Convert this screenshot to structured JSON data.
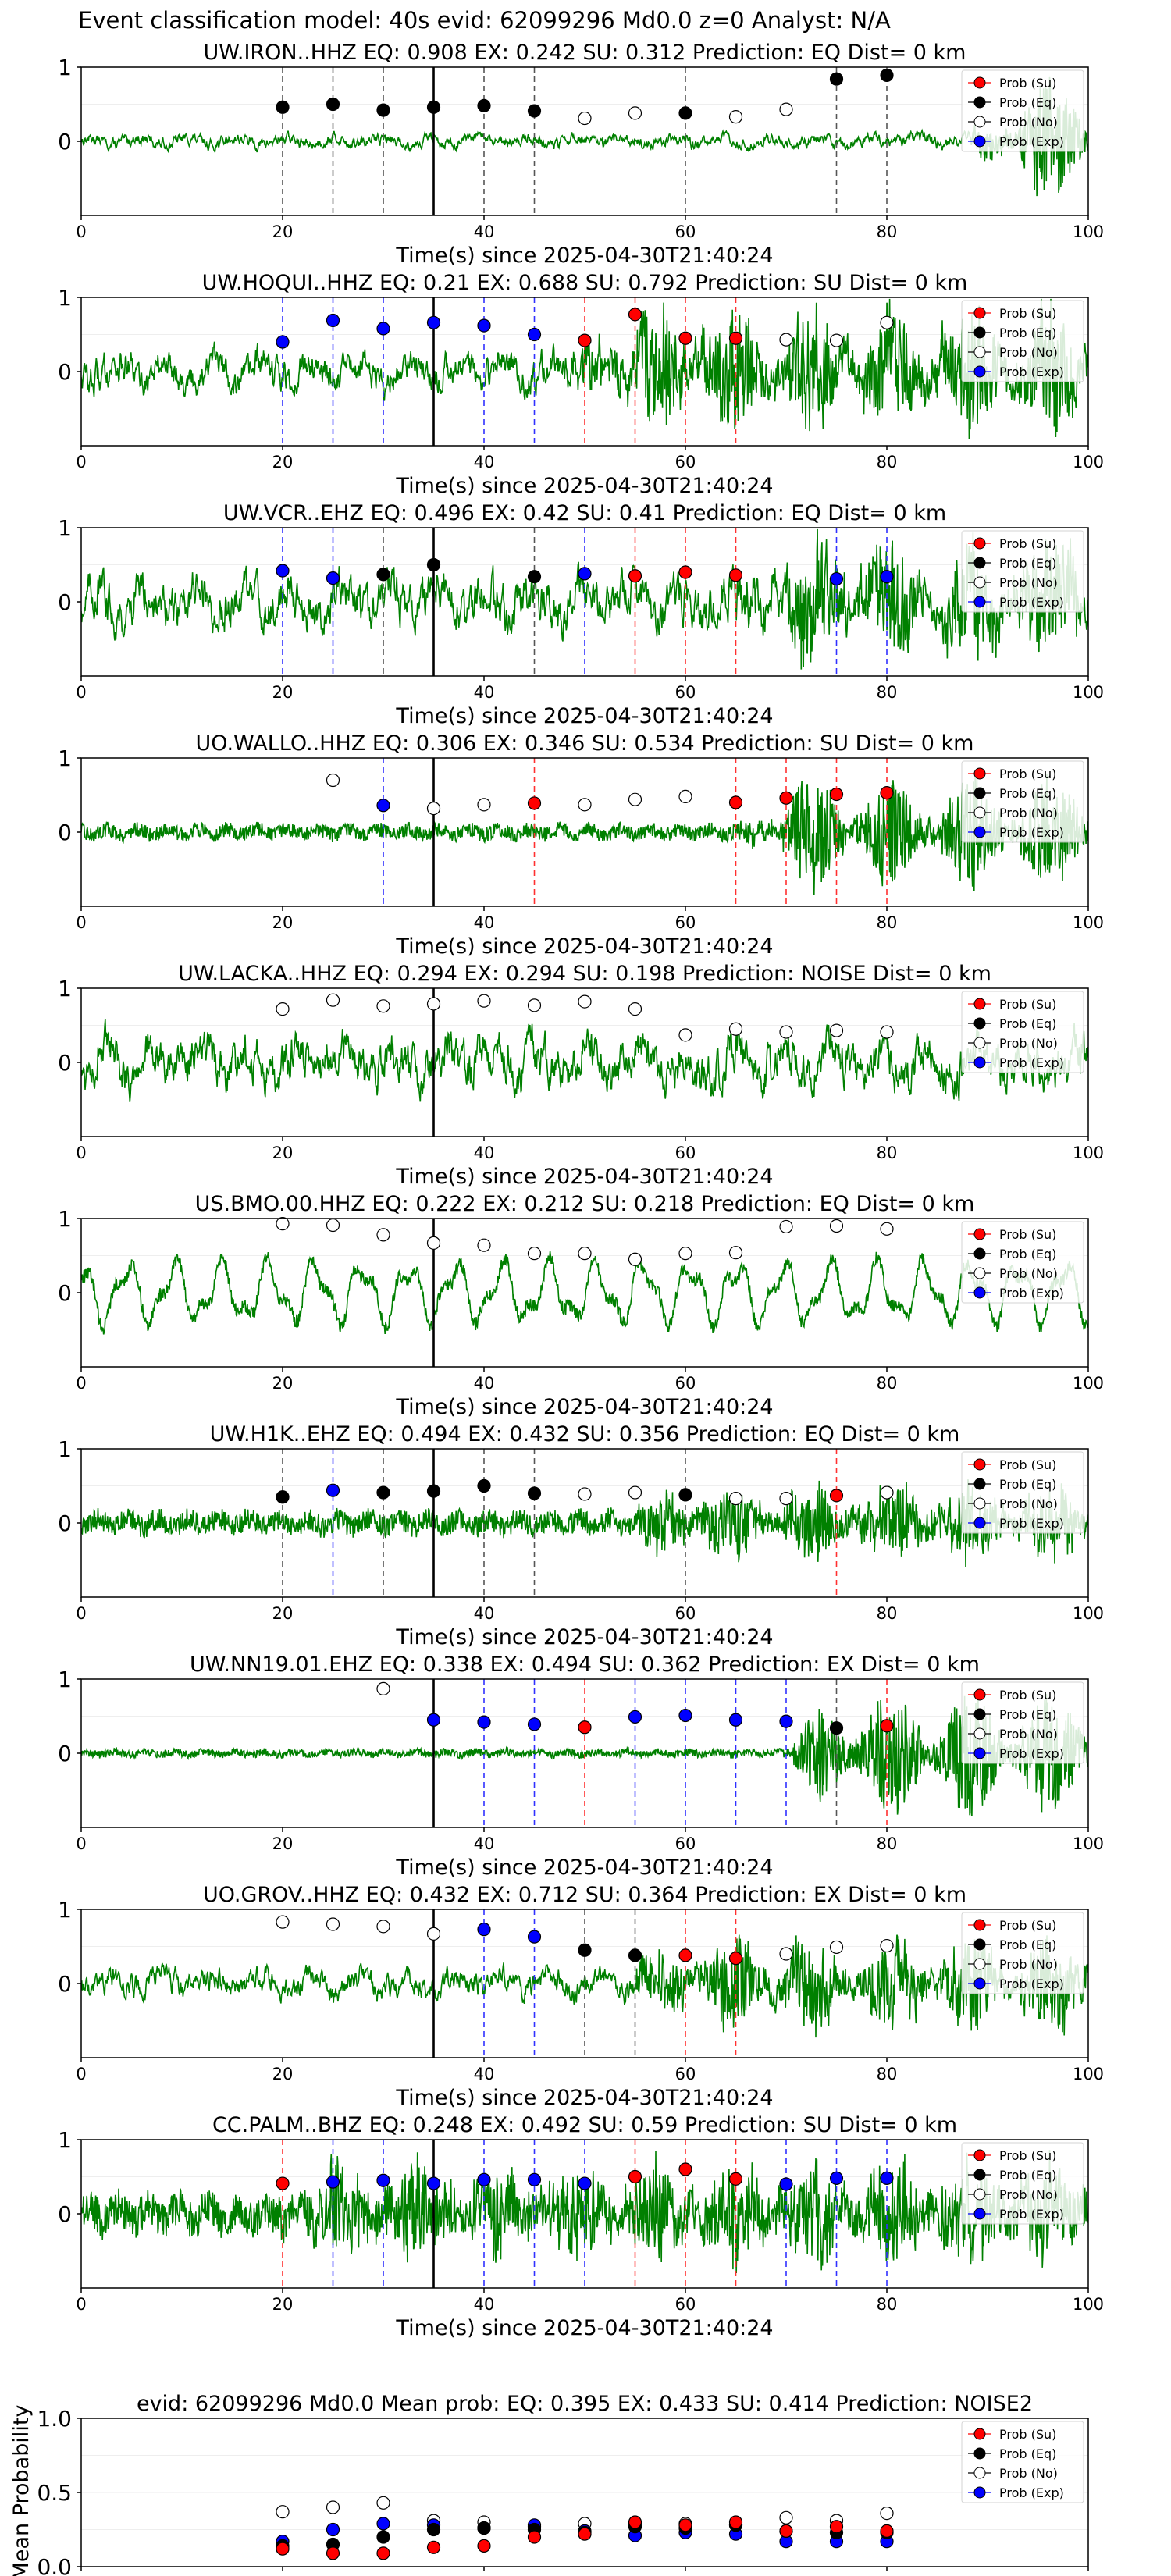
{
  "figure_title": "Event classification model: 40s evid: 62099296 Md0.0 z=0 Analyst: N/A",
  "colors": {
    "su": "#ff0000",
    "eq": "#000000",
    "no": "#ffffff",
    "exp": "#0000ff",
    "trace": "#008000",
    "eq_line": "#555555",
    "su_line": "#ff3030",
    "exp_line": "#3030ff"
  },
  "legend": [
    "Prob (Su)",
    "Prob (Eq)",
    "Prob (No)",
    "Prob (Exp)"
  ],
  "common": {
    "xlabel": "Time(s) since 2025-04-30T21:40:24",
    "xticks": [
      0,
      20,
      40,
      60,
      80,
      100
    ],
    "xlim": [
      0,
      100
    ],
    "ylim": [
      -1,
      1
    ],
    "yticks": [
      0,
      1
    ],
    "pick_time": 35
  },
  "chart_data": [
    {
      "type": "scatter",
      "title": "UW.IRON..HHZ   EQ: 0.908  EX: 0.242  SU: 0.312   Prediction: EQ    Dist= 0 km",
      "trace": {
        "amp": 0.12,
        "noise": "mid",
        "burst_start": 88,
        "burst_amp": 0.9
      },
      "points": [
        {
          "x": 20,
          "y": 0.46,
          "c": "eq",
          "line": true
        },
        {
          "x": 25,
          "y": 0.5,
          "c": "eq",
          "line": true
        },
        {
          "x": 30,
          "y": 0.42,
          "c": "eq",
          "line": true
        },
        {
          "x": 35,
          "y": 0.46,
          "c": "eq",
          "line": true
        },
        {
          "x": 40,
          "y": 0.48,
          "c": "eq",
          "line": true
        },
        {
          "x": 45,
          "y": 0.41,
          "c": "eq",
          "line": true
        },
        {
          "x": 50,
          "y": 0.31,
          "c": "no"
        },
        {
          "x": 55,
          "y": 0.38,
          "c": "no"
        },
        {
          "x": 60,
          "y": 0.38,
          "c": "eq",
          "line": true
        },
        {
          "x": 65,
          "y": 0.33,
          "c": "no"
        },
        {
          "x": 70,
          "y": 0.43,
          "c": "no"
        },
        {
          "x": 75,
          "y": 0.84,
          "c": "eq",
          "line": true
        },
        {
          "x": 80,
          "y": 0.89,
          "c": "eq",
          "line": true
        }
      ]
    },
    {
      "type": "scatter",
      "title": "UW.HOQUI..HHZ   EQ: 0.21  EX: 0.688  SU: 0.792   Prediction: SU    Dist= 0 km",
      "trace": {
        "amp": 0.35,
        "noise": "mid",
        "burst_start": 48,
        "burst_amp": 0.8
      },
      "points": [
        {
          "x": 20,
          "y": 0.4,
          "c": "exp",
          "line": true
        },
        {
          "x": 25,
          "y": 0.69,
          "c": "exp",
          "line": true
        },
        {
          "x": 30,
          "y": 0.58,
          "c": "exp",
          "line": true
        },
        {
          "x": 35,
          "y": 0.66,
          "c": "exp",
          "line": true
        },
        {
          "x": 40,
          "y": 0.62,
          "c": "exp",
          "line": true
        },
        {
          "x": 45,
          "y": 0.5,
          "c": "exp",
          "line": true
        },
        {
          "x": 50,
          "y": 0.42,
          "c": "su",
          "line": true
        },
        {
          "x": 55,
          "y": 0.77,
          "c": "su",
          "line": true
        },
        {
          "x": 60,
          "y": 0.45,
          "c": "su",
          "line": true
        },
        {
          "x": 65,
          "y": 0.45,
          "c": "su",
          "line": true
        },
        {
          "x": 70,
          "y": 0.43,
          "c": "no"
        },
        {
          "x": 75,
          "y": 0.42,
          "c": "no"
        },
        {
          "x": 80,
          "y": 0.66,
          "c": "no"
        }
      ]
    },
    {
      "type": "scatter",
      "title": "UW.VCR..EHZ   EQ: 0.496  EX: 0.42  SU: 0.41   Prediction: EQ    Dist= 0 km",
      "trace": {
        "amp": 0.45,
        "noise": "mid",
        "burst_start": 64,
        "burst_amp": 0.7
      },
      "points": [
        {
          "x": 20,
          "y": 0.42,
          "c": "exp",
          "line": true
        },
        {
          "x": 25,
          "y": 0.32,
          "c": "exp",
          "line": true
        },
        {
          "x": 30,
          "y": 0.37,
          "c": "eq",
          "line": true
        },
        {
          "x": 35,
          "y": 0.5,
          "c": "eq",
          "line": true
        },
        {
          "x": 45,
          "y": 0.34,
          "c": "eq",
          "line": true
        },
        {
          "x": 50,
          "y": 0.38,
          "c": "exp",
          "line": true
        },
        {
          "x": 55,
          "y": 0.35,
          "c": "su",
          "line": true
        },
        {
          "x": 60,
          "y": 0.4,
          "c": "su",
          "line": true
        },
        {
          "x": 65,
          "y": 0.36,
          "c": "su",
          "line": true
        },
        {
          "x": 75,
          "y": 0.31,
          "c": "exp",
          "line": true
        },
        {
          "x": 80,
          "y": 0.34,
          "c": "exp",
          "line": true
        }
      ]
    },
    {
      "type": "scatter",
      "title": "UO.WALLO..HHZ   EQ: 0.306  EX: 0.346  SU: 0.534   Prediction: SU    Dist= 0 km",
      "trace": {
        "amp": 0.1,
        "noise": "fine",
        "burst_start": 65,
        "burst_amp": 0.75
      },
      "points": [
        {
          "x": 25,
          "y": 0.7,
          "c": "no"
        },
        {
          "x": 30,
          "y": 0.36,
          "c": "exp",
          "line": true
        },
        {
          "x": 35,
          "y": 0.32,
          "c": "no"
        },
        {
          "x": 40,
          "y": 0.37,
          "c": "no"
        },
        {
          "x": 45,
          "y": 0.39,
          "c": "su",
          "line": true
        },
        {
          "x": 50,
          "y": 0.37,
          "c": "no"
        },
        {
          "x": 55,
          "y": 0.44,
          "c": "no"
        },
        {
          "x": 60,
          "y": 0.48,
          "c": "no"
        },
        {
          "x": 65,
          "y": 0.4,
          "c": "su",
          "line": true
        },
        {
          "x": 70,
          "y": 0.46,
          "c": "su",
          "line": true
        },
        {
          "x": 75,
          "y": 0.51,
          "c": "su",
          "line": true
        },
        {
          "x": 80,
          "y": 0.53,
          "c": "su",
          "line": true
        }
      ]
    },
    {
      "type": "scatter",
      "title": "UW.LACKA..HHZ   EQ: 0.294  EX: 0.294  SU: 0.198   Prediction: NOISE    Dist= 0 km",
      "trace": {
        "amp": 0.45,
        "noise": "mid",
        "burst_start": 100,
        "burst_amp": 0
      },
      "points": [
        {
          "x": 20,
          "y": 0.72,
          "c": "no"
        },
        {
          "x": 25,
          "y": 0.84,
          "c": "no"
        },
        {
          "x": 30,
          "y": 0.76,
          "c": "no"
        },
        {
          "x": 35,
          "y": 0.79,
          "c": "no"
        },
        {
          "x": 40,
          "y": 0.83,
          "c": "no"
        },
        {
          "x": 45,
          "y": 0.77,
          "c": "no"
        },
        {
          "x": 50,
          "y": 0.82,
          "c": "no"
        },
        {
          "x": 55,
          "y": 0.72,
          "c": "no"
        },
        {
          "x": 60,
          "y": 0.37,
          "c": "no"
        },
        {
          "x": 65,
          "y": 0.45,
          "c": "no"
        },
        {
          "x": 70,
          "y": 0.41,
          "c": "no"
        },
        {
          "x": 75,
          "y": 0.43,
          "c": "no"
        },
        {
          "x": 80,
          "y": 0.41,
          "c": "no"
        }
      ]
    },
    {
      "type": "scatter",
      "title": "US.BMO.00.HHZ   EQ: 0.222  EX: 0.212  SU: 0.218   Prediction: EQ    Dist= 0 km",
      "trace": {
        "amp": 0.55,
        "noise": "wave",
        "burst_start": 100,
        "burst_amp": 0
      },
      "points": [
        {
          "x": 20,
          "y": 0.93,
          "c": "no"
        },
        {
          "x": 25,
          "y": 0.91,
          "c": "no"
        },
        {
          "x": 30,
          "y": 0.78,
          "c": "no"
        },
        {
          "x": 35,
          "y": 0.67,
          "c": "no"
        },
        {
          "x": 40,
          "y": 0.64,
          "c": "no"
        },
        {
          "x": 45,
          "y": 0.53,
          "c": "no"
        },
        {
          "x": 50,
          "y": 0.53,
          "c": "no"
        },
        {
          "x": 55,
          "y": 0.45,
          "c": "no"
        },
        {
          "x": 60,
          "y": 0.53,
          "c": "no"
        },
        {
          "x": 65,
          "y": 0.54,
          "c": "no"
        },
        {
          "x": 70,
          "y": 0.89,
          "c": "no"
        },
        {
          "x": 75,
          "y": 0.9,
          "c": "no"
        },
        {
          "x": 80,
          "y": 0.86,
          "c": "no"
        }
      ]
    },
    {
      "type": "scatter",
      "title": "UW.H1K..EHZ   EQ: 0.494  EX: 0.432  SU: 0.356   Prediction: EQ    Dist= 0 km",
      "trace": {
        "amp": 0.15,
        "noise": "fine",
        "burst_start": 53,
        "burst_amp": 0.5
      },
      "points": [
        {
          "x": 20,
          "y": 0.35,
          "c": "eq",
          "line": true
        },
        {
          "x": 25,
          "y": 0.44,
          "c": "exp",
          "line": true
        },
        {
          "x": 30,
          "y": 0.41,
          "c": "eq",
          "line": true
        },
        {
          "x": 35,
          "y": 0.43,
          "c": "eq",
          "line": true
        },
        {
          "x": 40,
          "y": 0.5,
          "c": "eq",
          "line": true
        },
        {
          "x": 45,
          "y": 0.4,
          "c": "eq",
          "line": true
        },
        {
          "x": 50,
          "y": 0.39,
          "c": "no"
        },
        {
          "x": 55,
          "y": 0.41,
          "c": "no"
        },
        {
          "x": 60,
          "y": 0.38,
          "c": "eq",
          "line": true
        },
        {
          "x": 65,
          "y": 0.33,
          "c": "no"
        },
        {
          "x": 70,
          "y": 0.33,
          "c": "no"
        },
        {
          "x": 75,
          "y": 0.37,
          "c": "su",
          "line": true
        },
        {
          "x": 80,
          "y": 0.41,
          "c": "no"
        }
      ]
    },
    {
      "type": "scatter",
      "title": "UW.NN19.01.EHZ   EQ: 0.338  EX: 0.494  SU: 0.362   Prediction: EX    Dist= 0 km",
      "trace": {
        "amp": 0.05,
        "noise": "fine",
        "burst_start": 69,
        "burst_amp": 0.9
      },
      "points": [
        {
          "x": 30,
          "y": 0.87,
          "c": "no"
        },
        {
          "x": 35,
          "y": 0.45,
          "c": "exp",
          "line": true
        },
        {
          "x": 40,
          "y": 0.42,
          "c": "exp",
          "line": true
        },
        {
          "x": 45,
          "y": 0.39,
          "c": "exp",
          "line": true
        },
        {
          "x": 50,
          "y": 0.35,
          "c": "su",
          "line": true
        },
        {
          "x": 55,
          "y": 0.49,
          "c": "exp",
          "line": true
        },
        {
          "x": 60,
          "y": 0.51,
          "c": "exp",
          "line": true
        },
        {
          "x": 65,
          "y": 0.45,
          "c": "exp",
          "line": true
        },
        {
          "x": 70,
          "y": 0.43,
          "c": "exp",
          "line": true
        },
        {
          "x": 75,
          "y": 0.34,
          "c": "eq",
          "line": true
        },
        {
          "x": 80,
          "y": 0.37,
          "c": "su",
          "line": true
        }
      ]
    },
    {
      "type": "scatter",
      "title": "UO.GROV..HHZ   EQ: 0.432  EX: 0.712  SU: 0.364   Prediction: EX    Dist= 0 km",
      "trace": {
        "amp": 0.25,
        "noise": "mid",
        "burst_start": 53,
        "burst_amp": 0.6
      },
      "points": [
        {
          "x": 20,
          "y": 0.83,
          "c": "no"
        },
        {
          "x": 25,
          "y": 0.8,
          "c": "no"
        },
        {
          "x": 30,
          "y": 0.77,
          "c": "no"
        },
        {
          "x": 35,
          "y": 0.67,
          "c": "no"
        },
        {
          "x": 40,
          "y": 0.73,
          "c": "exp",
          "line": true
        },
        {
          "x": 45,
          "y": 0.63,
          "c": "exp",
          "line": true
        },
        {
          "x": 50,
          "y": 0.45,
          "c": "eq",
          "line": true
        },
        {
          "x": 55,
          "y": 0.38,
          "c": "eq",
          "line": true
        },
        {
          "x": 60,
          "y": 0.38,
          "c": "su",
          "line": true
        },
        {
          "x": 65,
          "y": 0.34,
          "c": "su",
          "line": true
        },
        {
          "x": 70,
          "y": 0.4,
          "c": "no"
        },
        {
          "x": 75,
          "y": 0.49,
          "c": "no"
        },
        {
          "x": 80,
          "y": 0.51,
          "c": "no"
        }
      ]
    },
    {
      "type": "scatter",
      "title": "CC.PALM..BHZ   EQ: 0.248  EX: 0.492  SU: 0.59   Prediction: SU    Dist= 0 km",
      "trace": {
        "amp": 0.25,
        "noise": "fine",
        "burst_start": 18,
        "burst_amp": 0.6
      },
      "points": [
        {
          "x": 20,
          "y": 0.41,
          "c": "su",
          "line": true
        },
        {
          "x": 25,
          "y": 0.43,
          "c": "exp",
          "line": true
        },
        {
          "x": 30,
          "y": 0.45,
          "c": "exp",
          "line": true
        },
        {
          "x": 35,
          "y": 0.41,
          "c": "exp",
          "line": true
        },
        {
          "x": 40,
          "y": 0.46,
          "c": "exp",
          "line": true
        },
        {
          "x": 45,
          "y": 0.46,
          "c": "exp",
          "line": true
        },
        {
          "x": 50,
          "y": 0.41,
          "c": "exp",
          "line": true
        },
        {
          "x": 55,
          "y": 0.5,
          "c": "su",
          "line": true
        },
        {
          "x": 60,
          "y": 0.6,
          "c": "su",
          "line": true
        },
        {
          "x": 65,
          "y": 0.47,
          "c": "su",
          "line": true
        },
        {
          "x": 70,
          "y": 0.4,
          "c": "exp",
          "line": true
        },
        {
          "x": 75,
          "y": 0.48,
          "c": "exp",
          "line": true
        },
        {
          "x": 80,
          "y": 0.48,
          "c": "exp",
          "line": true
        }
      ]
    },
    {
      "type": "scatter",
      "title": "evid: 62099296  Md0.0   Mean prob:   EQ: 0.395  EX: 0.433  SU: 0.414   Prediction: NOISE2",
      "ylabel": "Mean Probability",
      "ylim": [
        0,
        1
      ],
      "yticks": [
        "0.0",
        "0.5",
        "1.0"
      ],
      "x": [
        20,
        25,
        30,
        35,
        40,
        45,
        50,
        55,
        60,
        65,
        70,
        75,
        80
      ],
      "series": [
        {
          "name": "Prob (No)",
          "c": "no",
          "values": [
            0.37,
            0.4,
            0.43,
            0.31,
            0.3,
            0.27,
            0.29,
            0.29,
            0.29,
            0.28,
            0.33,
            0.31,
            0.36
          ]
        },
        {
          "name": "Prob (Exp)",
          "c": "exp",
          "values": [
            0.17,
            0.25,
            0.29,
            0.28,
            0.26,
            0.28,
            0.24,
            0.21,
            0.23,
            0.22,
            0.17,
            0.17,
            0.17
          ]
        },
        {
          "name": "Prob (Eq)",
          "c": "eq",
          "values": [
            0.14,
            0.15,
            0.2,
            0.25,
            0.26,
            0.25,
            0.23,
            0.27,
            0.26,
            0.28,
            0.24,
            0.23,
            0.23
          ]
        },
        {
          "name": "Prob (Su)",
          "c": "su",
          "values": [
            0.12,
            0.09,
            0.09,
            0.13,
            0.14,
            0.2,
            0.22,
            0.3,
            0.28,
            0.3,
            0.24,
            0.27,
            0.24
          ]
        }
      ]
    }
  ]
}
